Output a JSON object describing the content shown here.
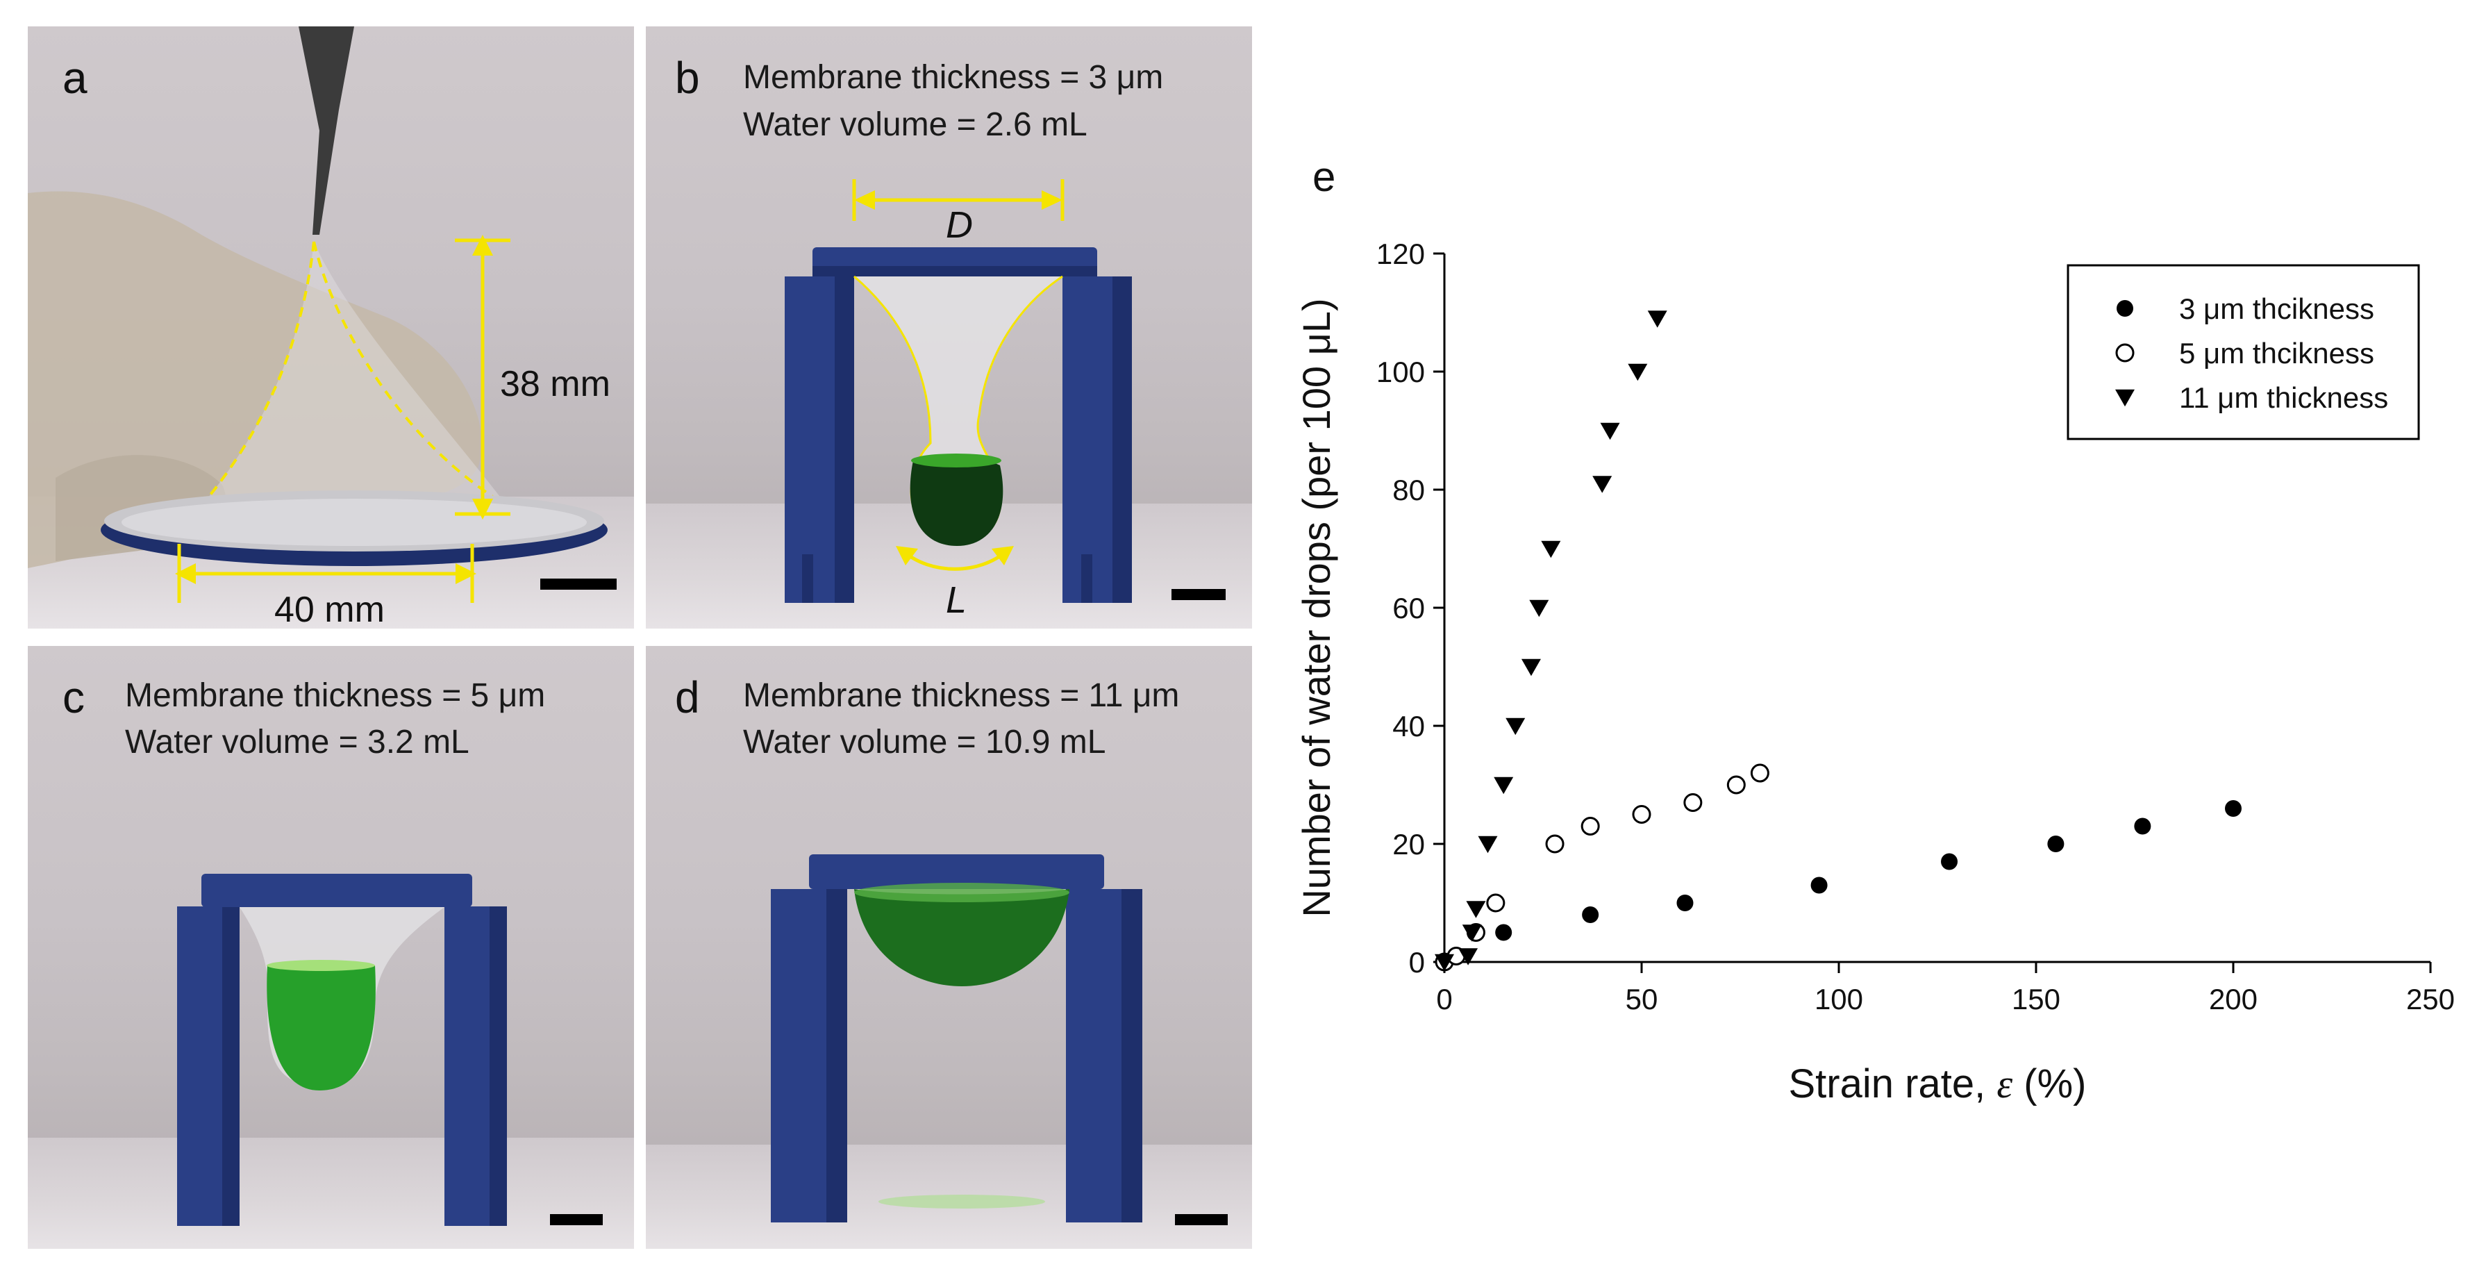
{
  "panels": {
    "a": {
      "label": "a",
      "height_dim": "38 mm",
      "width_dim": "40 mm"
    },
    "b": {
      "label": "b",
      "line1": "Membrane thickness = 3 μm",
      "line2": "Water volume = 2.6 mL",
      "dim_top": "D",
      "dim_bottom": "L"
    },
    "c": {
      "label": "c",
      "line1": "Membrane thickness = 5 μm",
      "line2": "Water volume = 3.2 mL"
    },
    "d": {
      "label": "d",
      "line1": "Membrane thickness = 11 μm",
      "line2": "Water volume = 10.9 mL"
    }
  },
  "colors": {
    "stand": "#2a3f86",
    "stand_dark": "#1e2f6b",
    "water": "#1f8a1f",
    "annotation": "#f5e400"
  },
  "chart_data": {
    "panel_label": "e",
    "type": "scatter",
    "xlabel": "Strain rate, ",
    "xlabel_symbol": "ε",
    "xlabel_unit": " (%)",
    "ylabel": "Number of water drops (per 100 μL)",
    "xlim": [
      0,
      250
    ],
    "ylim": [
      0,
      120
    ],
    "xticks": [
      0,
      50,
      100,
      150,
      200,
      250
    ],
    "yticks": [
      0,
      20,
      40,
      60,
      80,
      100,
      120
    ],
    "legend_position": "top-right",
    "series": [
      {
        "name": "3 μm thcikness",
        "marker": "filled-circle",
        "points": [
          [
            0,
            0
          ],
          [
            15,
            5
          ],
          [
            37,
            8
          ],
          [
            61,
            10
          ],
          [
            95,
            13
          ],
          [
            128,
            17
          ],
          [
            155,
            20
          ],
          [
            177,
            23
          ],
          [
            200,
            26
          ]
        ]
      },
      {
        "name": "5 μm thcikness",
        "marker": "open-circle",
        "points": [
          [
            0,
            0
          ],
          [
            3,
            1
          ],
          [
            8,
            5
          ],
          [
            13,
            10
          ],
          [
            28,
            20
          ],
          [
            37,
            23
          ],
          [
            50,
            25
          ],
          [
            63,
            27
          ],
          [
            74,
            30
          ],
          [
            80,
            32
          ]
        ]
      },
      {
        "name": "11 μm thickness",
        "marker": "filled-triangle-down",
        "points": [
          [
            0,
            0
          ],
          [
            6,
            1
          ],
          [
            7,
            5
          ],
          [
            8,
            9
          ],
          [
            11,
            20
          ],
          [
            15,
            30
          ],
          [
            18,
            40
          ],
          [
            22,
            50
          ],
          [
            24,
            60
          ],
          [
            27,
            70
          ],
          [
            40,
            81
          ],
          [
            42,
            90
          ],
          [
            49,
            100
          ],
          [
            54,
            109
          ]
        ]
      }
    ]
  }
}
